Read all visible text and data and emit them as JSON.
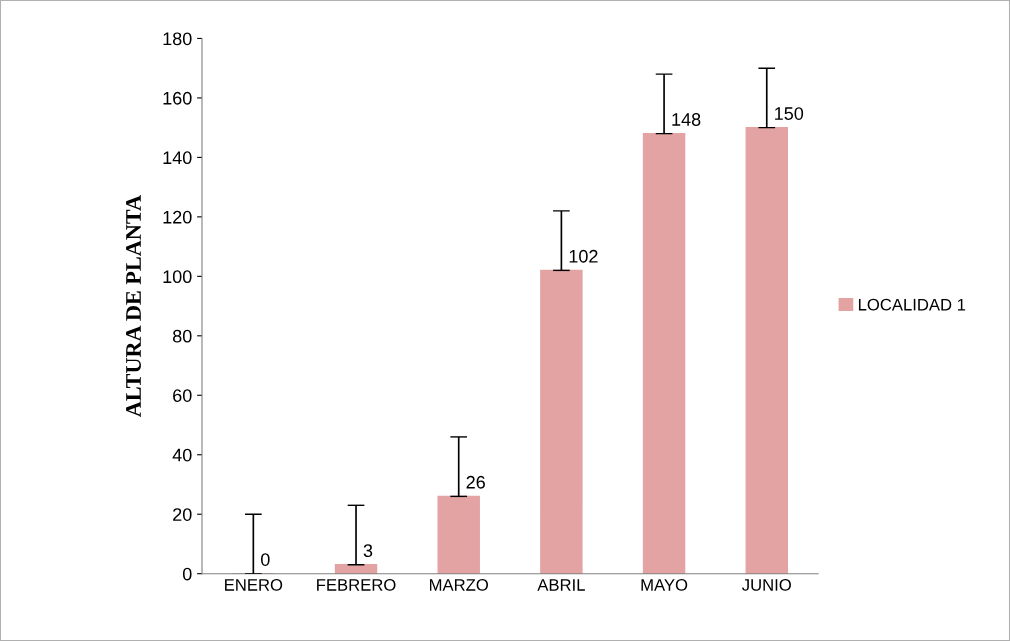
{
  "chart_data": {
    "type": "bar",
    "ylabel": "ALTURA DE PLANTA",
    "categories": [
      "ENERO",
      "FEBRERO",
      "MARZO",
      "ABRIL",
      "MAYO",
      "JUNIO"
    ],
    "series": [
      {
        "name": "LOCALIDAD 1",
        "color": "#e3a3a3",
        "values": [
          0,
          3,
          26,
          102,
          148,
          150
        ],
        "errors": [
          [
            0,
            20
          ],
          [
            3,
            23
          ],
          [
            26,
            46
          ],
          [
            102,
            122
          ],
          [
            148,
            168
          ],
          [
            150,
            170
          ]
        ]
      }
    ],
    "data_labels": true,
    "ylim": [
      0,
      180
    ],
    "yticks": [
      0,
      20,
      40,
      60,
      80,
      100,
      120,
      140,
      160,
      180
    ],
    "grid": false,
    "legend": "right"
  }
}
